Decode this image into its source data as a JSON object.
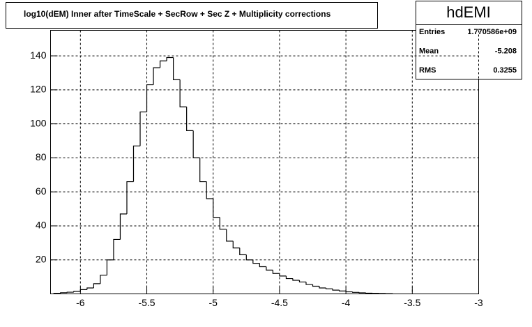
{
  "chart_data": {
    "type": "histogram",
    "title": "log10(dEM) Inner after TimeScale + SecRow + Sec Z + Multiplicity corrections",
    "bins": [
      -6.2,
      -6.15,
      -6.1,
      -6.05,
      -6.0,
      -5.95,
      -5.9,
      -5.85,
      -5.8,
      -5.75,
      -5.7,
      -5.65,
      -5.6,
      -5.55,
      -5.5,
      -5.45,
      -5.4,
      -5.35,
      -5.3,
      -5.25,
      -5.2,
      -5.15,
      -5.1,
      -5.05,
      -5.0,
      -4.95,
      -4.9,
      -4.85,
      -4.8,
      -4.75,
      -4.7,
      -4.65,
      -4.6,
      -4.55,
      -4.5,
      -4.45,
      -4.4,
      -4.35,
      -4.3,
      -4.25,
      -4.2,
      -4.15,
      -4.1,
      -4.05,
      -4.0,
      -3.95,
      -3.9,
      -3.85,
      -3.8,
      -3.75,
      -3.7,
      -3.65
    ],
    "values": [
      0.3,
      0.7,
      1,
      1.5,
      2.5,
      3.5,
      6,
      11,
      20,
      32,
      47,
      66,
      87,
      107,
      123,
      133,
      137,
      139,
      126,
      110,
      96,
      80,
      66,
      56,
      45,
      38,
      31,
      27,
      23,
      20,
      18,
      16,
      14,
      12,
      10.5,
      9,
      8,
      7,
      5.5,
      4.5,
      3.5,
      3,
      2.2,
      1.7,
      1.2,
      0.9,
      0.6,
      0.4,
      0.3,
      0.2,
      0.1
    ],
    "color": "#000000",
    "xlim": [
      -6.225,
      -3
    ],
    "xticks": [
      -6,
      -5.5,
      -5,
      -4.5,
      -4,
      -3.5,
      -3
    ],
    "ylim": [
      0,
      155
    ],
    "yticks": [
      20,
      40,
      60,
      80,
      100,
      120,
      140
    ],
    "grid": true,
    "stats": {
      "name": "hdEMI",
      "rows": [
        {
          "label": "Entries",
          "value": "1.770586e+09"
        },
        {
          "label": "Mean",
          "value": "-5.208"
        },
        {
          "label": "RMS",
          "value": "0.3255"
        }
      ]
    }
  }
}
